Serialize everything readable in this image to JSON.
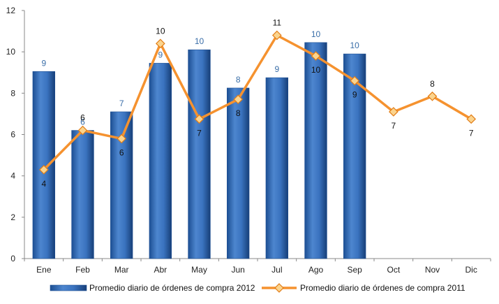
{
  "chart_data": {
    "type": "bar",
    "categories": [
      "Ene",
      "Feb",
      "Mar",
      "Abr",
      "May",
      "Jun",
      "Jul",
      "Ago",
      "Sep",
      "Oct",
      "Nov",
      "Dic"
    ],
    "ylim": [
      0,
      12
    ],
    "yticks": [
      0,
      2,
      4,
      6,
      8,
      10,
      12
    ],
    "series": [
      {
        "name": "Promedio diario de órdenes de compra 2012",
        "type": "bar",
        "color": "#2f66b3",
        "values": [
          9.05,
          6.2,
          7.1,
          9.45,
          10.1,
          8.25,
          8.75,
          10.45,
          9.9,
          null,
          null,
          null
        ],
        "labels": [
          "9",
          "6",
          "7",
          "9",
          "10",
          "8",
          "9",
          "10",
          "10",
          "",
          "",
          ""
        ]
      },
      {
        "name": "Promedio diario de órdenes de compra 2011",
        "type": "line",
        "color": "#f5922f",
        "values": [
          4.3,
          6.2,
          5.8,
          10.4,
          6.75,
          7.7,
          10.8,
          9.8,
          8.6,
          7.1,
          7.85,
          6.75
        ],
        "labels": [
          "4",
          "6",
          "6",
          "10",
          "7",
          "8",
          "11",
          "10",
          "9",
          "7",
          "8",
          "7"
        ]
      }
    ],
    "grid": false,
    "legend_position": "bottom"
  }
}
